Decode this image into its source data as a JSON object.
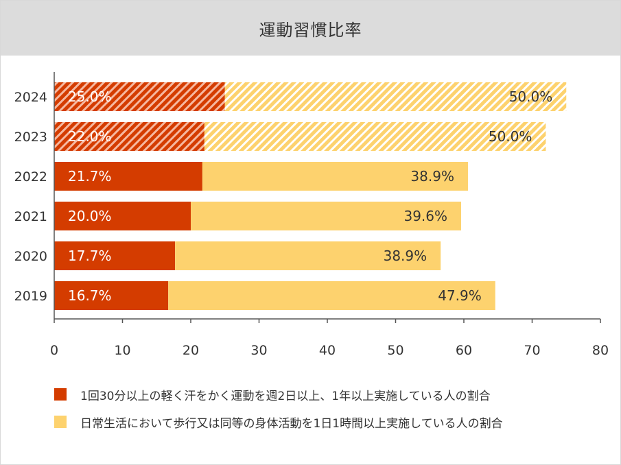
{
  "title": "運動習慣比率",
  "colors": {
    "series1": "#d43c00",
    "series2": "#fdd26e",
    "axis": "#555555"
  },
  "chart_data": {
    "type": "bar",
    "orientation": "horizontal",
    "stacked": true,
    "categories": [
      "2024",
      "2023",
      "2022",
      "2021",
      "2020",
      "2019"
    ],
    "series": [
      {
        "name": "1回30分以上の軽く汗をかく運動を週2日以上、1年以上実施している人の割合",
        "values": [
          25.0,
          22.0,
          21.7,
          20.0,
          17.7,
          16.7
        ],
        "labels": [
          "25.0%",
          "22.0%",
          "21.7%",
          "20.0%",
          "17.7%",
          "16.7%"
        ],
        "hatched": [
          true,
          true,
          false,
          false,
          false,
          false
        ]
      },
      {
        "name": "日常生活において歩行又は同等の身体活動を1日1時間以上実施している人の割合",
        "values": [
          50.0,
          50.0,
          38.9,
          39.6,
          38.9,
          47.9
        ],
        "labels": [
          "50.0%",
          "50.0%",
          "38.9%",
          "39.6%",
          "38.9%",
          "47.9%"
        ],
        "hatched": [
          true,
          true,
          false,
          false,
          false,
          false
        ]
      }
    ],
    "xlim": [
      0,
      80
    ],
    "xticks": [
      "0",
      "10",
      "20",
      "30",
      "40",
      "50",
      "60",
      "70",
      "80"
    ],
    "grid": false,
    "legend": "bottom"
  }
}
